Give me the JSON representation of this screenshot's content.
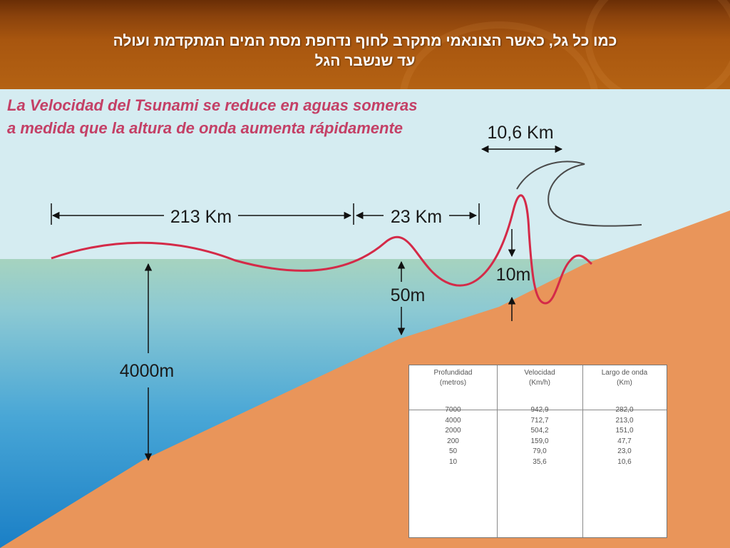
{
  "slide": {
    "title_line1": "כמו כל גל, כאשר הצונאמי מתקרב לחוף נדחפת מסת המים המתקדמת ועולה",
    "title_line2": "עד שנשבר הגל"
  },
  "figure": {
    "heading_line1": "La Velocidad del Tsunami se reduce en aguas someras",
    "heading_line2": "a medida que la altura de onda aumenta rápidamente",
    "labels": {
      "wavelength_deep": "213 Km",
      "wavelength_mid": "23 Km",
      "wavelength_shallow": "10,6 Km",
      "depth_deep": "4000m",
      "depth_mid": "50m",
      "depth_shallow": "10m"
    },
    "colors": {
      "wave": "#d42a48",
      "breaking_wave": "#4a4a4a",
      "seabed": "#e9955a",
      "sky": "#d5ecf1",
      "heading": "#c44066"
    }
  },
  "table": {
    "headers": [
      [
        "Profundidad",
        "(metros)"
      ],
      [
        "Velocidad",
        "(Km/h)"
      ],
      [
        "Largo de onda",
        "(Km)"
      ]
    ],
    "rows": [
      [
        "7000",
        "942,9",
        "282,0"
      ],
      [
        "4000",
        "712,7",
        "213,0"
      ],
      [
        "2000",
        "504,2",
        "151,0"
      ],
      [
        "200",
        "159,0",
        "47,7"
      ],
      [
        "50",
        "79,0",
        "23,0"
      ],
      [
        "10",
        "35,6",
        "10,6"
      ]
    ]
  }
}
